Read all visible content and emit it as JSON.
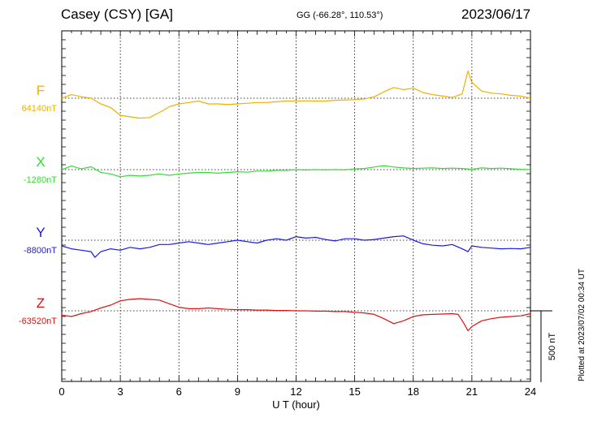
{
  "header": {
    "station": "Casey (CSY)  [GA]",
    "coords": "GG (-66.28°, 110.53°)",
    "date": "2023/06/17"
  },
  "plotted_note": "Plotted at 2023/07/02 00:34 UT",
  "chart_data": {
    "type": "line",
    "xlabel": "U T (hour)",
    "xlim": [
      0,
      24
    ],
    "xticks": [
      0,
      3,
      6,
      9,
      12,
      15,
      18,
      21,
      24
    ],
    "scale_bar_label": "500 nT",
    "scale_bar_nT": 500,
    "grid": true,
    "series": [
      {
        "name": "F",
        "baseline_label": "64140nT",
        "baseline_nT": 64140,
        "color": "#f0b000",
        "x": [
          0,
          0.5,
          1,
          1.5,
          2,
          2.5,
          3,
          3.5,
          4,
          4.5,
          5,
          5.5,
          6,
          6.5,
          7,
          7.5,
          8,
          8.5,
          9,
          9.5,
          10,
          10.5,
          11,
          11.5,
          12,
          12.5,
          13,
          13.5,
          14,
          14.5,
          15,
          15.5,
          16,
          16.5,
          17,
          17.5,
          18,
          18.5,
          19,
          19.5,
          20,
          20.5,
          20.8,
          21,
          21.5,
          22,
          22.5,
          23,
          23.5,
          24
        ],
        "y": [
          64140,
          64165,
          64150,
          64140,
          64100,
          64075,
          64020,
          64010,
          64000,
          64005,
          64040,
          64080,
          64100,
          64110,
          64120,
          64100,
          64100,
          64095,
          64100,
          64105,
          64110,
          64110,
          64115,
          64120,
          64120,
          64122,
          64120,
          64120,
          64125,
          64128,
          64130,
          64135,
          64150,
          64185,
          64215,
          64200,
          64210,
          64180,
          64165,
          64155,
          64145,
          64170,
          64330,
          64250,
          64190,
          64175,
          64170,
          64160,
          64155,
          64140
        ]
      },
      {
        "name": "X",
        "baseline_label": "-1280nT",
        "baseline_nT": -1280,
        "color": "#33dd33",
        "x": [
          0,
          0.5,
          1,
          1.5,
          2,
          2.5,
          3,
          3.5,
          4,
          4.5,
          5,
          5.5,
          6,
          6.5,
          7,
          7.5,
          8,
          8.5,
          9,
          9.5,
          10,
          10.5,
          11,
          11.5,
          12,
          12.5,
          13,
          13.5,
          14,
          14.5,
          15,
          15.5,
          16,
          16.5,
          17,
          17.5,
          18,
          18.5,
          19,
          19.5,
          20,
          20.5,
          21,
          21.5,
          22,
          22.5,
          23,
          23.5,
          24
        ],
        "y": [
          -1280,
          -1255,
          -1275,
          -1260,
          -1300,
          -1310,
          -1330,
          -1320,
          -1325,
          -1320,
          -1310,
          -1320,
          -1310,
          -1305,
          -1300,
          -1300,
          -1305,
          -1300,
          -1295,
          -1298,
          -1290,
          -1290,
          -1285,
          -1285,
          -1280,
          -1283,
          -1280,
          -1282,
          -1280,
          -1282,
          -1275,
          -1272,
          -1262,
          -1252,
          -1262,
          -1268,
          -1272,
          -1270,
          -1268,
          -1272,
          -1270,
          -1272,
          -1278,
          -1268,
          -1272,
          -1270,
          -1274,
          -1278,
          -1280
        ]
      },
      {
        "name": "Y",
        "baseline_label": "-8800nT",
        "baseline_nT": -8800,
        "color": "#1a1ae6",
        "x": [
          0,
          0.5,
          1,
          1.5,
          1.7,
          2,
          2.5,
          3,
          3.5,
          4,
          4.5,
          5,
          5.5,
          6,
          6.5,
          7,
          7.5,
          8,
          8.5,
          9,
          9.5,
          10,
          10.5,
          11,
          11.5,
          12,
          12.5,
          13,
          13.5,
          14,
          14.5,
          15,
          15.5,
          16,
          16.5,
          17,
          17.5,
          18,
          18.5,
          19,
          19.5,
          20,
          20.5,
          20.8,
          21,
          21.5,
          22,
          22.5,
          23,
          23.5,
          24
        ],
        "y": [
          -8840,
          -8860,
          -8870,
          -8880,
          -8920,
          -8880,
          -8860,
          -8870,
          -8850,
          -8860,
          -8850,
          -8830,
          -8830,
          -8820,
          -8810,
          -8820,
          -8830,
          -8820,
          -8810,
          -8800,
          -8810,
          -8820,
          -8800,
          -8790,
          -8800,
          -8775,
          -8785,
          -8780,
          -8795,
          -8805,
          -8790,
          -8790,
          -8800,
          -8795,
          -8785,
          -8775,
          -8770,
          -8800,
          -8825,
          -8835,
          -8840,
          -8830,
          -8860,
          -8880,
          -8840,
          -8850,
          -8855,
          -8860,
          -8858,
          -8860,
          -8850
        ]
      },
      {
        "name": "Z",
        "baseline_label": "-63520nT",
        "baseline_nT": -63520,
        "color": "#e01010",
        "x": [
          0,
          0.5,
          1,
          1.5,
          2,
          2.5,
          3,
          3.5,
          4,
          4.5,
          5,
          5.5,
          6,
          6.5,
          7,
          7.5,
          8,
          8.5,
          9,
          9.5,
          10,
          10.5,
          11,
          11.5,
          12,
          12.5,
          13,
          13.5,
          14,
          14.5,
          15,
          15.5,
          16,
          16.5,
          17,
          17.5,
          18,
          18.5,
          19,
          19.5,
          20,
          20.3,
          20.6,
          20.8,
          21,
          21.5,
          22,
          22.5,
          23,
          23.5,
          24
        ],
        "y": [
          -63550,
          -63560,
          -63540,
          -63525,
          -63500,
          -63480,
          -63450,
          -63440,
          -63435,
          -63440,
          -63445,
          -63470,
          -63495,
          -63505,
          -63505,
          -63500,
          -63505,
          -63510,
          -63512,
          -63512,
          -63515,
          -63515,
          -63518,
          -63518,
          -63520,
          -63520,
          -63522,
          -63522,
          -63525,
          -63525,
          -63530,
          -63535,
          -63545,
          -63575,
          -63610,
          -63590,
          -63560,
          -63548,
          -63545,
          -63543,
          -63540,
          -63545,
          -63610,
          -63660,
          -63630,
          -63590,
          -63575,
          -63565,
          -63560,
          -63555,
          -63540
        ]
      }
    ]
  }
}
